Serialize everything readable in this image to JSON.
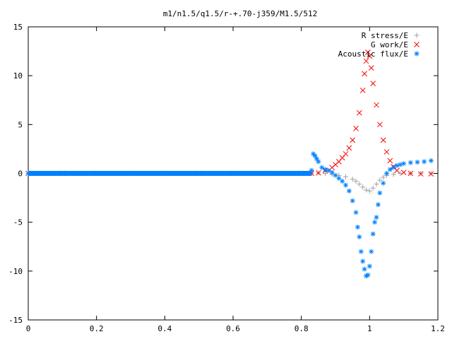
{
  "chart_data": {
    "type": "scatter",
    "title": "m1/n1.5/q1.5/r-+.70-j359/M1.5/512",
    "xlabel": "",
    "ylabel": "",
    "xlim": [
      0,
      1.2
    ],
    "ylim": [
      -15,
      15
    ],
    "x_ticks": [
      0,
      0.2,
      0.4,
      0.6,
      0.8,
      1,
      1.2
    ],
    "x_tick_labels": [
      "0",
      "0.2",
      "0.4",
      "0.6",
      "0.8",
      "1",
      "1.2"
    ],
    "y_ticks": [
      -15,
      -10,
      -5,
      0,
      5,
      10,
      15
    ],
    "y_tick_labels": [
      "-15",
      "-10",
      "-5",
      "0",
      "5",
      "10",
      "15"
    ],
    "grid": false,
    "legend_position": "top-right",
    "series": [
      {
        "name": "R stress/E",
        "marker": "plus",
        "color": "#a0a0a0",
        "points": [
          [
            0.0,
            0
          ],
          [
            0.1,
            0
          ],
          [
            0.2,
            0
          ],
          [
            0.3,
            0
          ],
          [
            0.4,
            0
          ],
          [
            0.5,
            0
          ],
          [
            0.6,
            0
          ],
          [
            0.7,
            0
          ],
          [
            0.8,
            0
          ],
          [
            0.83,
            0
          ],
          [
            0.85,
            0.05
          ],
          [
            0.87,
            0
          ],
          [
            0.89,
            -0.1
          ],
          [
            0.91,
            -0.2
          ],
          [
            0.93,
            -0.35
          ],
          [
            0.95,
            -0.6
          ],
          [
            0.96,
            -0.8
          ],
          [
            0.97,
            -1.1
          ],
          [
            0.98,
            -1.4
          ],
          [
            0.99,
            -1.7
          ],
          [
            1.0,
            -1.8
          ],
          [
            1.01,
            -1.5
          ],
          [
            1.02,
            -1.1
          ],
          [
            1.03,
            -0.7
          ],
          [
            1.04,
            -0.4
          ],
          [
            1.05,
            -0.2
          ],
          [
            1.07,
            -0.1
          ],
          [
            1.09,
            0
          ],
          [
            1.12,
            0
          ],
          [
            1.15,
            0
          ],
          [
            1.18,
            0
          ]
        ]
      },
      {
        "name": "G work/E",
        "marker": "cross",
        "color": "#ff0000",
        "points": [
          [
            0.0,
            0
          ],
          [
            0.1,
            0
          ],
          [
            0.2,
            0
          ],
          [
            0.3,
            0
          ],
          [
            0.4,
            0
          ],
          [
            0.5,
            0
          ],
          [
            0.6,
            0
          ],
          [
            0.7,
            0
          ],
          [
            0.8,
            0
          ],
          [
            0.83,
            0
          ],
          [
            0.85,
            0.05
          ],
          [
            0.87,
            0.3
          ],
          [
            0.89,
            0.6
          ],
          [
            0.9,
            0.9
          ],
          [
            0.91,
            1.2
          ],
          [
            0.92,
            1.6
          ],
          [
            0.93,
            2.0
          ],
          [
            0.94,
            2.6
          ],
          [
            0.95,
            3.4
          ],
          [
            0.96,
            4.6
          ],
          [
            0.97,
            6.2
          ],
          [
            0.98,
            8.5
          ],
          [
            0.985,
            10.2
          ],
          [
            0.99,
            11.5
          ],
          [
            0.995,
            12.4
          ],
          [
            1.0,
            12.0
          ],
          [
            1.005,
            10.8
          ],
          [
            1.01,
            9.2
          ],
          [
            1.02,
            7.0
          ],
          [
            1.03,
            5.0
          ],
          [
            1.04,
            3.4
          ],
          [
            1.05,
            2.2
          ],
          [
            1.06,
            1.3
          ],
          [
            1.07,
            0.7
          ],
          [
            1.08,
            0.3
          ],
          [
            1.1,
            0.1
          ],
          [
            1.12,
            0
          ],
          [
            1.15,
            -0.05
          ],
          [
            1.18,
            -0.05
          ]
        ]
      },
      {
        "name": "Acoustic flux/E",
        "marker": "star",
        "color": "#0080ff",
        "points": [
          [
            0.0,
            0
          ],
          [
            0.1,
            0
          ],
          [
            0.2,
            0
          ],
          [
            0.3,
            0
          ],
          [
            0.4,
            0
          ],
          [
            0.5,
            0
          ],
          [
            0.6,
            0
          ],
          [
            0.7,
            0
          ],
          [
            0.8,
            0
          ],
          [
            0.83,
            0.3
          ],
          [
            0.835,
            2.0
          ],
          [
            0.84,
            1.8
          ],
          [
            0.845,
            1.5
          ],
          [
            0.85,
            1.2
          ],
          [
            0.86,
            0.6
          ],
          [
            0.87,
            0.4
          ],
          [
            0.88,
            0.3
          ],
          [
            0.89,
            0.1
          ],
          [
            0.9,
            -0.2
          ],
          [
            0.91,
            -0.5
          ],
          [
            0.92,
            -0.8
          ],
          [
            0.93,
            -1.2
          ],
          [
            0.94,
            -1.8
          ],
          [
            0.95,
            -2.8
          ],
          [
            0.96,
            -4.0
          ],
          [
            0.965,
            -5.5
          ],
          [
            0.97,
            -6.5
          ],
          [
            0.975,
            -8.0
          ],
          [
            0.98,
            -9.0
          ],
          [
            0.985,
            -9.8
          ],
          [
            0.99,
            -10.5
          ],
          [
            0.995,
            -10.4
          ],
          [
            1.0,
            -9.5
          ],
          [
            1.005,
            -8.0
          ],
          [
            1.01,
            -6.2
          ],
          [
            1.015,
            -5.0
          ],
          [
            1.02,
            -4.5
          ],
          [
            1.025,
            -3.2
          ],
          [
            1.03,
            -2.0
          ],
          [
            1.04,
            -1.0
          ],
          [
            1.05,
            0.0
          ],
          [
            1.06,
            0.4
          ],
          [
            1.07,
            0.6
          ],
          [
            1.08,
            0.8
          ],
          [
            1.09,
            0.9
          ],
          [
            1.1,
            1.0
          ],
          [
            1.12,
            1.1
          ],
          [
            1.14,
            1.15
          ],
          [
            1.16,
            1.2
          ],
          [
            1.18,
            1.3
          ]
        ]
      }
    ]
  }
}
